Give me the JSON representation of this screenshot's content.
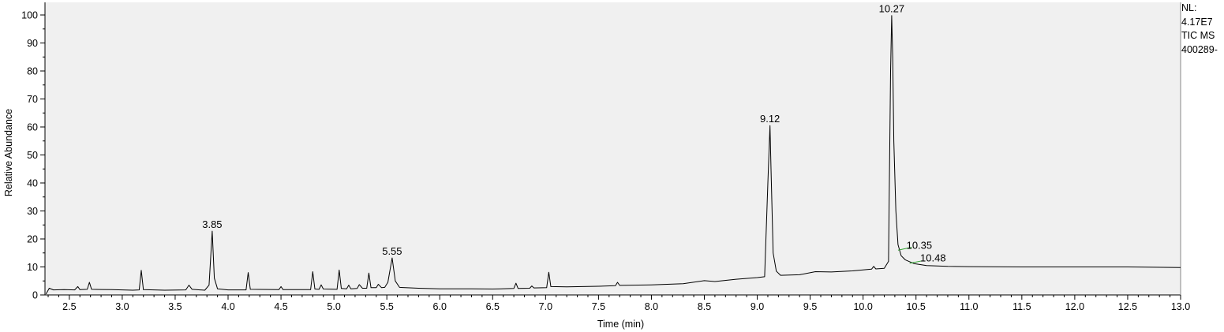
{
  "side_info": {
    "nl_label": "NL:",
    "nl_value": "4.17E7",
    "trace_label": "TIC  MS",
    "file_label": "400289-"
  },
  "chart_data": {
    "type": "line",
    "xlabel": "Time (min)",
    "ylabel": "Relative Abundance",
    "xlim": [
      2.27,
      13.0
    ],
    "ylim": [
      0,
      100
    ],
    "x_ticks": [
      2.5,
      3.0,
      3.5,
      4.0,
      4.5,
      5.0,
      5.5,
      6.0,
      6.5,
      7.0,
      7.5,
      8.0,
      8.5,
      9.0,
      9.5,
      10.0,
      10.5,
      11.0,
      11.5,
      12.0,
      12.5,
      13.0
    ],
    "y_ticks": [
      0,
      10,
      20,
      30,
      40,
      50,
      60,
      70,
      80,
      90,
      100
    ],
    "grid": false,
    "plot_background": "#f0f0f0",
    "line_color": "#000000",
    "integration_mark_color": "#2ca02c",
    "peak_labels": [
      {
        "x": 3.85,
        "y": 22.8,
        "label": "3.85"
      },
      {
        "x": 5.55,
        "y": 13.2,
        "label": "5.55"
      },
      {
        "x": 9.12,
        "y": 60.5,
        "label": "9.12"
      },
      {
        "x": 10.27,
        "y": 99.8,
        "label": "10.27"
      },
      {
        "x": 10.35,
        "y": 16.5,
        "label": "10.35"
      },
      {
        "x": 10.48,
        "y": 12.0,
        "label": "10.48"
      }
    ],
    "series": [
      {
        "points": [
          [
            2.28,
            0.3
          ],
          [
            2.31,
            2.4
          ],
          [
            2.35,
            1.8
          ],
          [
            2.45,
            1.9
          ],
          [
            2.55,
            1.8
          ],
          [
            2.58,
            3.0
          ],
          [
            2.6,
            1.9
          ],
          [
            2.67,
            2.0
          ],
          [
            2.69,
            4.5
          ],
          [
            2.71,
            2.0
          ],
          [
            2.9,
            1.9
          ],
          [
            3.1,
            1.7
          ],
          [
            3.16,
            1.8
          ],
          [
            3.18,
            8.8
          ],
          [
            3.2,
            1.9
          ],
          [
            3.4,
            1.7
          ],
          [
            3.6,
            1.8
          ],
          [
            3.63,
            3.5
          ],
          [
            3.66,
            2.0
          ],
          [
            3.78,
            1.7
          ],
          [
            3.82,
            3.5
          ],
          [
            3.85,
            22.8
          ],
          [
            3.87,
            6.0
          ],
          [
            3.9,
            2.2
          ],
          [
            4.0,
            1.8
          ],
          [
            4.17,
            1.8
          ],
          [
            4.19,
            8.0
          ],
          [
            4.21,
            2.0
          ],
          [
            4.48,
            1.9
          ],
          [
            4.5,
            3.0
          ],
          [
            4.52,
            1.9
          ],
          [
            4.78,
            1.9
          ],
          [
            4.8,
            8.3
          ],
          [
            4.82,
            2.1
          ],
          [
            4.86,
            2.0
          ],
          [
            4.88,
            3.6
          ],
          [
            4.9,
            2.1
          ],
          [
            5.03,
            2.0
          ],
          [
            5.05,
            8.9
          ],
          [
            5.07,
            2.3
          ],
          [
            5.12,
            2.2
          ],
          [
            5.14,
            3.5
          ],
          [
            5.16,
            2.2
          ],
          [
            5.22,
            2.3
          ],
          [
            5.24,
            3.7
          ],
          [
            5.27,
            2.4
          ],
          [
            5.31,
            2.4
          ],
          [
            5.33,
            7.8
          ],
          [
            5.35,
            2.6
          ],
          [
            5.4,
            2.6
          ],
          [
            5.42,
            3.8
          ],
          [
            5.45,
            2.6
          ],
          [
            5.48,
            2.7
          ],
          [
            5.51,
            4.5
          ],
          [
            5.55,
            13.2
          ],
          [
            5.58,
            5.0
          ],
          [
            5.62,
            2.7
          ],
          [
            5.8,
            2.4
          ],
          [
            6.0,
            2.2
          ],
          [
            6.3,
            2.2
          ],
          [
            6.5,
            2.1
          ],
          [
            6.7,
            2.3
          ],
          [
            6.72,
            4.2
          ],
          [
            6.74,
            2.3
          ],
          [
            6.85,
            2.4
          ],
          [
            6.87,
            3.2
          ],
          [
            6.89,
            2.5
          ],
          [
            7.01,
            2.6
          ],
          [
            7.03,
            8.1
          ],
          [
            7.05,
            3.0
          ],
          [
            7.2,
            2.9
          ],
          [
            7.5,
            3.1
          ],
          [
            7.66,
            3.3
          ],
          [
            7.68,
            4.5
          ],
          [
            7.7,
            3.4
          ],
          [
            8.0,
            3.6
          ],
          [
            8.3,
            4.0
          ],
          [
            8.5,
            5.1
          ],
          [
            8.6,
            4.8
          ],
          [
            8.8,
            5.6
          ],
          [
            9.0,
            6.2
          ],
          [
            9.07,
            6.5
          ],
          [
            9.1,
            40.0
          ],
          [
            9.12,
            60.5
          ],
          [
            9.13,
            45.0
          ],
          [
            9.15,
            15.0
          ],
          [
            9.18,
            8.5
          ],
          [
            9.22,
            7.0
          ],
          [
            9.4,
            7.2
          ],
          [
            9.55,
            8.3
          ],
          [
            9.7,
            8.2
          ],
          [
            9.9,
            8.6
          ],
          [
            10.08,
            9.2
          ],
          [
            10.1,
            10.2
          ],
          [
            10.12,
            9.3
          ],
          [
            10.2,
            9.5
          ],
          [
            10.24,
            12.0
          ],
          [
            10.26,
            80.0
          ],
          [
            10.27,
            99.8
          ],
          [
            10.28,
            85.0
          ],
          [
            10.29,
            55.0
          ],
          [
            10.31,
            30.0
          ],
          [
            10.33,
            18.0
          ],
          [
            10.36,
            14.0
          ],
          [
            10.4,
            12.5
          ],
          [
            10.48,
            11.2
          ],
          [
            10.6,
            10.5
          ],
          [
            10.8,
            10.2
          ],
          [
            11.0,
            10.1
          ],
          [
            11.5,
            10.0
          ],
          [
            12.0,
            10.0
          ],
          [
            12.5,
            10.0
          ],
          [
            13.0,
            9.8
          ]
        ]
      }
    ]
  }
}
